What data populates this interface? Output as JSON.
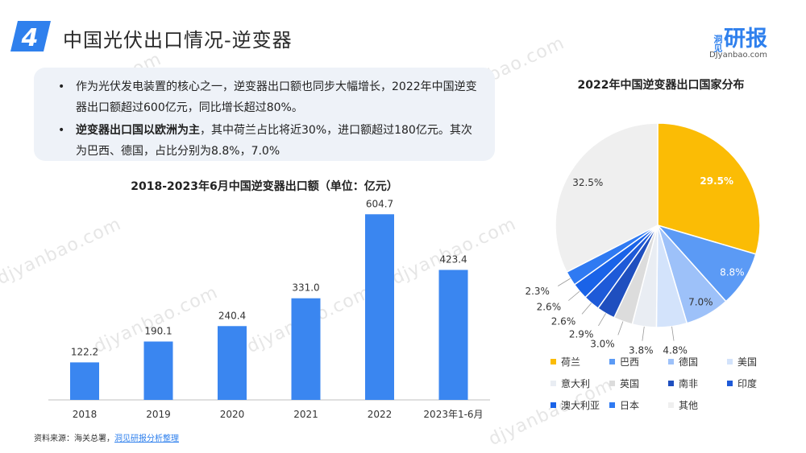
{
  "header": {
    "section_number": "4",
    "title": "中国光伏出口情况-逆变器",
    "logo_small": "洞见",
    "logo_main": "研报",
    "logo_url": "DJyanbao.com"
  },
  "summary": {
    "item1_text": "作为光伏发电装置的核心之一，逆变器出口额也同步大幅增长，2022年中国逆变器出口额超过600亿元，同比增长超过80%。",
    "item2_bold": "逆变器出口国以欧洲为主",
    "item2_text": "，其中荷兰占比将近30%，进口额超过180亿元。其次为巴西、德国，占比分别为8.8%，7.0%"
  },
  "source": {
    "prefix": "资料来源：海关总署，",
    "link": "洞见研报分析整理"
  },
  "watermark": "djyanbao.com",
  "colors": {
    "accent": "#2f80ed",
    "bar": "#3a86f0"
  },
  "chart_data": [
    {
      "type": "bar",
      "title": "2018-2023年6月中国逆变器出口额（单位：亿元）",
      "categories": [
        "2018",
        "2019",
        "2020",
        "2021",
        "2022",
        "2023年1-6月"
      ],
      "values": [
        122.2,
        190.1,
        240.4,
        331.0,
        604.7,
        423.4
      ],
      "value_labels": [
        "122.2",
        "190.1",
        "240.4",
        "331.0",
        "604.7",
        "423.4"
      ],
      "ylim": [
        0,
        650
      ],
      "grid": false,
      "color": "#3a86f0"
    },
    {
      "type": "pie",
      "title": "2022年中国逆变器出口国家分布",
      "start": "12 o'clock",
      "direction": "clockwise",
      "legend_position": "bottom",
      "slices": [
        {
          "name": "荷兰",
          "value": 29.5,
          "label": "29.5%",
          "color": "#fbbc05"
        },
        {
          "name": "巴西",
          "value": 8.8,
          "label": "8.8%",
          "color": "#5b9af5"
        },
        {
          "name": "德国",
          "value": 7.0,
          "label": "7.0%",
          "color": "#9dc1f9"
        },
        {
          "name": "美国",
          "value": 4.8,
          "label": "4.8%",
          "color": "#d3e3fb"
        },
        {
          "name": "意大利",
          "value": 3.8,
          "label": "3.8%",
          "color": "#e9edf3"
        },
        {
          "name": "英国",
          "value": 3.0,
          "label": "3.0%",
          "color": "#dcdcdc"
        },
        {
          "name": "南非",
          "value": 2.9,
          "label": "2.9%",
          "color": "#1f4fbf"
        },
        {
          "name": "印度",
          "value": 2.6,
          "label": "2.6%",
          "color": "#1e5ad8"
        },
        {
          "name": "澳大利亚",
          "value": 2.6,
          "label": "2.6%",
          "color": "#1a63e8"
        },
        {
          "name": "日本",
          "value": 2.3,
          "label": "2.3%",
          "color": "#2f7af2"
        },
        {
          "name": "其他",
          "value": 32.5,
          "label": "32.5%",
          "color": "#efefef"
        }
      ]
    }
  ]
}
